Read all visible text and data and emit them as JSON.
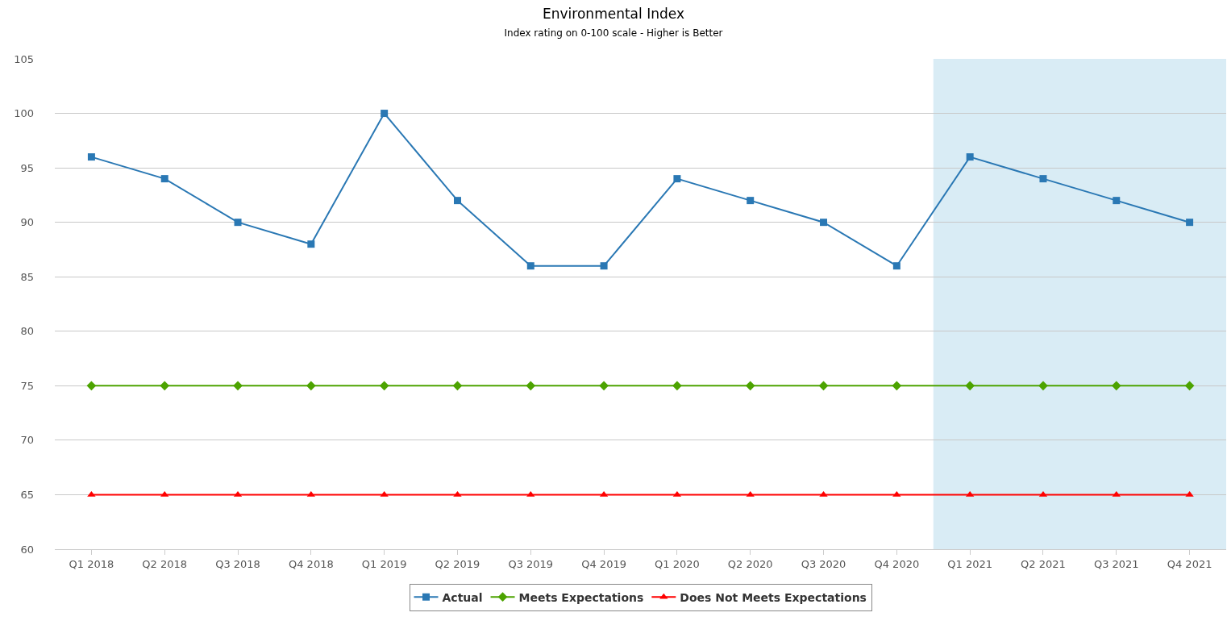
{
  "chart_data": {
    "type": "line",
    "title": "Environmental Index",
    "subtitle": "Index rating on 0-100 scale - Higher is Better",
    "categories": [
      "Q1 2018",
      "Q2 2018",
      "Q3 2018",
      "Q4 2018",
      "Q1 2019",
      "Q2 2019",
      "Q3 2019",
      "Q4 2019",
      "Q1 2020",
      "Q2 2020",
      "Q3 2020",
      "Q4 2020",
      "Q1 2021",
      "Q2 2021",
      "Q3 2021",
      "Q4 2021"
    ],
    "series": [
      {
        "name": "Actual",
        "color": "#2a78b4",
        "marker": "square",
        "values": [
          96,
          94,
          90,
          88,
          100,
          92,
          86,
          86,
          94,
          92,
          90,
          86,
          96,
          94,
          92,
          90
        ]
      },
      {
        "name": "Meets Expectations",
        "color": "#4ca300",
        "marker": "diamond",
        "values": [
          75,
          75,
          75,
          75,
          75,
          75,
          75,
          75,
          75,
          75,
          75,
          75,
          75,
          75,
          75,
          75
        ]
      },
      {
        "name": "Does Not Meets Expectations",
        "color": "#ff0000",
        "marker": "triangle",
        "values": [
          65,
          65,
          65,
          65,
          65,
          65,
          65,
          65,
          65,
          65,
          65,
          65,
          65,
          65,
          65,
          65
        ]
      }
    ],
    "bands": [
      {
        "axis": "x",
        "from": "Q1 2021",
        "to": "Q4 2021",
        "color": "#d9ecf5"
      }
    ],
    "ylim": [
      60,
      105
    ],
    "yticks": [
      60,
      65,
      70,
      75,
      80,
      85,
      90,
      95,
      100,
      105
    ],
    "grid": "y",
    "legend": "bottom",
    "line_style": "solid"
  }
}
